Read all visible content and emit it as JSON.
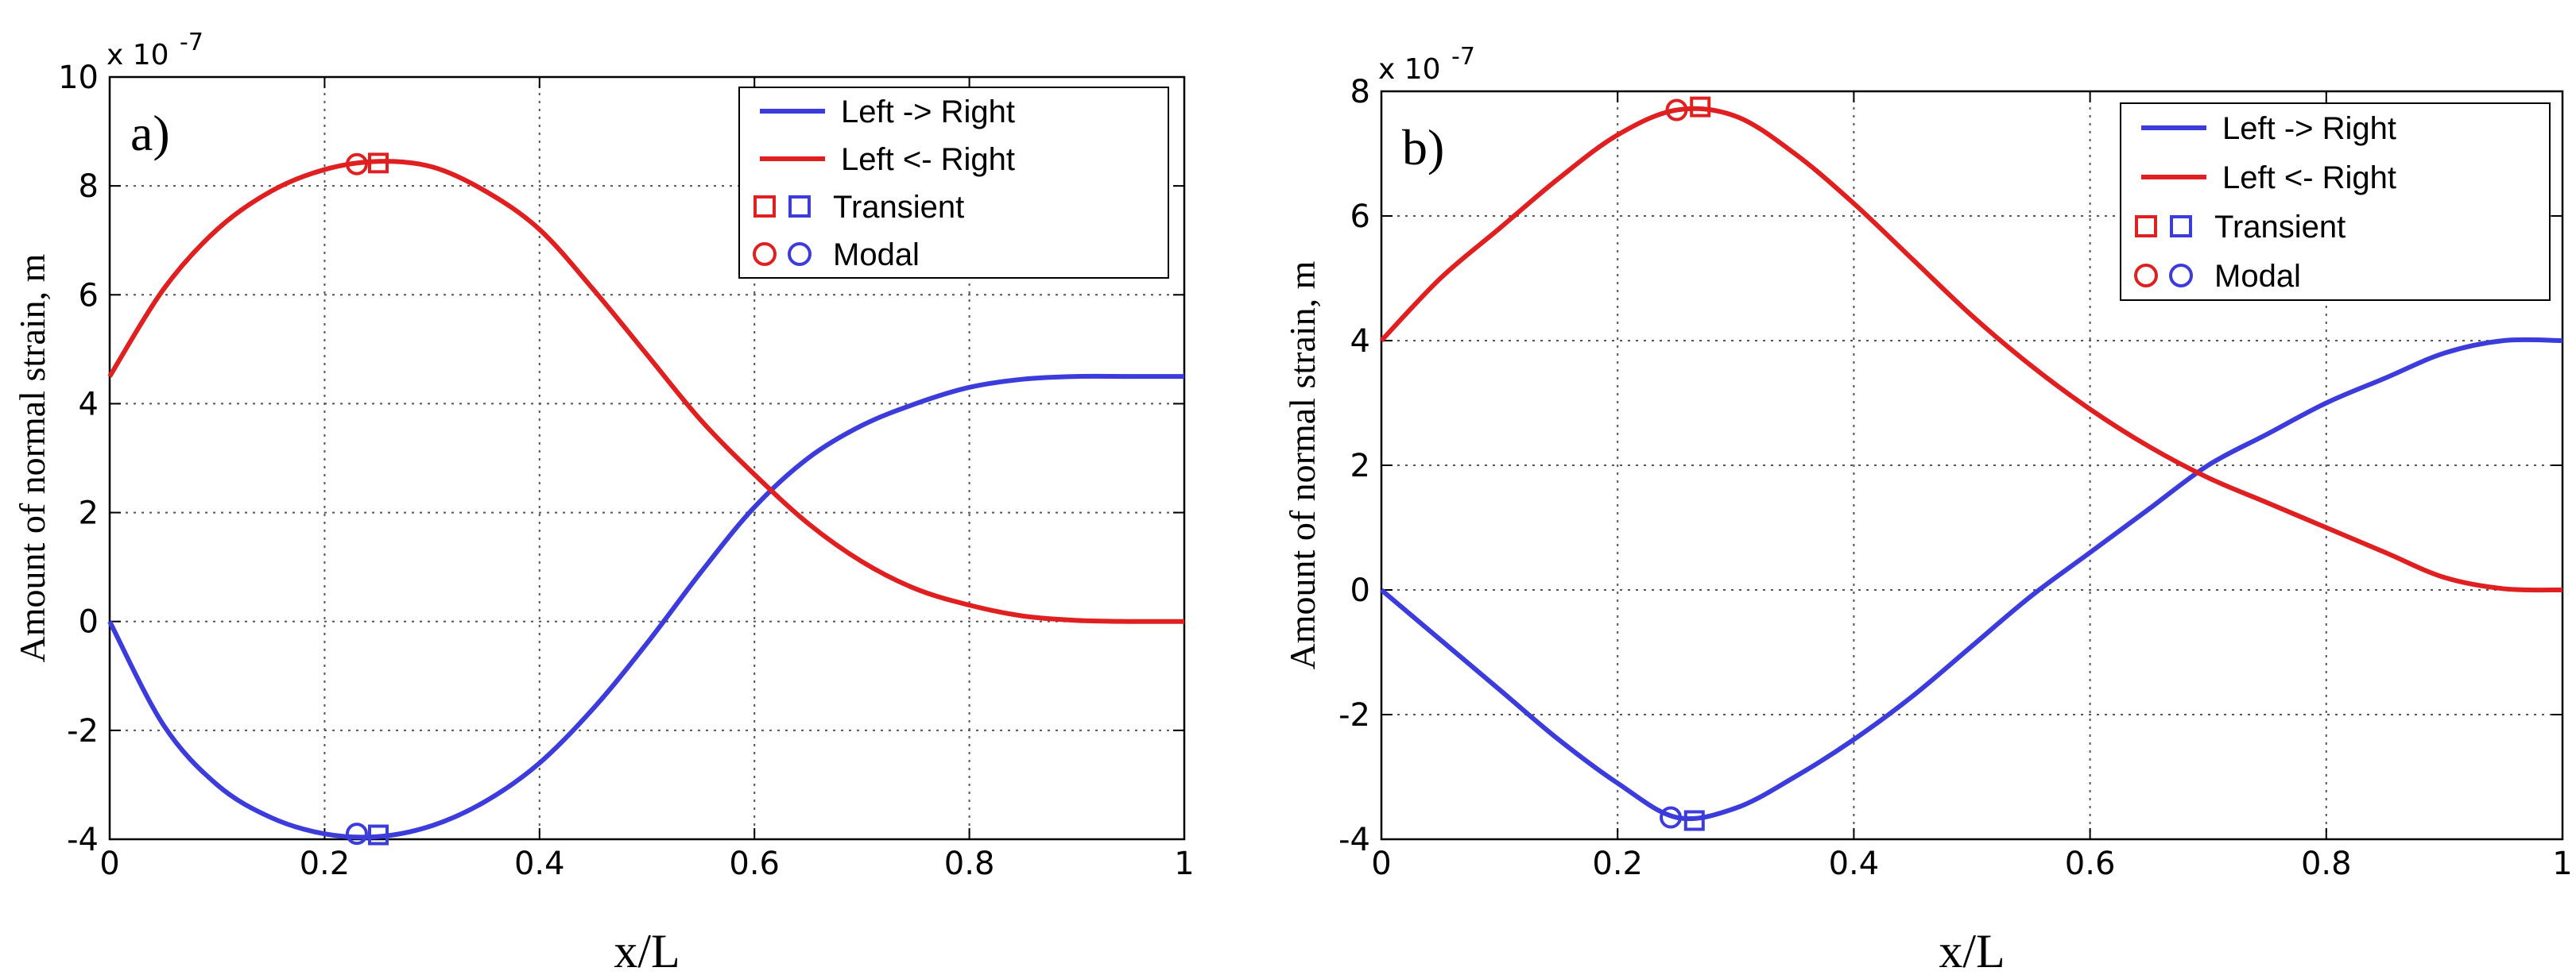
{
  "chart_data": [
    {
      "type": "line",
      "panel_label": "a)",
      "xlabel": "x/L",
      "ylabel": "Amount of normal strain, m",
      "y_multiplier": "x 10",
      "y_exponent": "-7",
      "xlim": [
        0,
        1
      ],
      "ylim": [
        -4,
        10
      ],
      "xticks": [
        0,
        0.2,
        0.4,
        0.6,
        0.8,
        1
      ],
      "xtick_labels": [
        "0",
        "0.2",
        "0.4",
        "0.6",
        "0.8",
        "1"
      ],
      "yticks": [
        -4,
        -2,
        0,
        2,
        4,
        6,
        8,
        10
      ],
      "ytick_labels": [
        "-4",
        "-2",
        "0",
        "2",
        "4",
        "6",
        "8",
        "10"
      ],
      "grid": true,
      "legend_position": "top-right",
      "series": [
        {
          "name": "Left -> Right",
          "color": "#3c3cdc",
          "x": [
            0,
            0.05,
            0.1,
            0.15,
            0.2,
            0.25,
            0.3,
            0.35,
            0.4,
            0.45,
            0.5,
            0.55,
            0.6,
            0.65,
            0.7,
            0.75,
            0.8,
            0.85,
            0.9,
            0.95,
            1.0
          ],
          "y": [
            0,
            -1.9,
            -3.0,
            -3.6,
            -3.9,
            -3.95,
            -3.75,
            -3.3,
            -2.6,
            -1.6,
            -0.4,
            0.9,
            2.1,
            3.0,
            3.6,
            4.0,
            4.3,
            4.45,
            4.5,
            4.5,
            4.5
          ]
        },
        {
          "name": "Left <- Right",
          "color": "#e02020",
          "x": [
            0,
            0.05,
            0.1,
            0.15,
            0.2,
            0.25,
            0.3,
            0.35,
            0.4,
            0.45,
            0.5,
            0.55,
            0.6,
            0.65,
            0.7,
            0.75,
            0.8,
            0.85,
            0.9,
            0.95,
            1.0
          ],
          "y": [
            4.5,
            6.1,
            7.2,
            7.9,
            8.3,
            8.45,
            8.35,
            7.9,
            7.2,
            6.1,
            4.9,
            3.7,
            2.7,
            1.8,
            1.1,
            0.6,
            0.3,
            0.1,
            0.02,
            0,
            0
          ]
        }
      ],
      "markers": [
        {
          "series": "Left <- Right",
          "method": "Modal",
          "shape": "circle",
          "x": 0.23,
          "y": 8.4
        },
        {
          "series": "Left <- Right",
          "method": "Transient",
          "shape": "square",
          "x": 0.25,
          "y": 8.42
        },
        {
          "series": "Left -> Right",
          "method": "Modal",
          "shape": "circle",
          "x": 0.23,
          "y": -3.9
        },
        {
          "series": "Left -> Right",
          "method": "Transient",
          "shape": "square",
          "x": 0.25,
          "y": -3.92
        }
      ],
      "legend": [
        {
          "label": "Left -> Right",
          "kind": "line",
          "colors": [
            "#3c3cdc"
          ]
        },
        {
          "label": "Left <- Right",
          "kind": "line",
          "colors": [
            "#e02020"
          ]
        },
        {
          "label": "Transient",
          "kind": "square",
          "colors": [
            "#e02020",
            "#3c3cdc"
          ]
        },
        {
          "label": "Modal",
          "kind": "circle",
          "colors": [
            "#e02020",
            "#3c3cdc"
          ]
        }
      ]
    },
    {
      "type": "line",
      "panel_label": "b)",
      "xlabel": "x/L",
      "ylabel": "Amount of normal strain, m",
      "y_multiplier": "x 10",
      "y_exponent": "-7",
      "xlim": [
        0,
        1
      ],
      "ylim": [
        -4,
        8
      ],
      "xticks": [
        0,
        0.2,
        0.4,
        0.6,
        0.8,
        1
      ],
      "xtick_labels": [
        "0",
        "0.2",
        "0.4",
        "0.6",
        "0.8",
        "1"
      ],
      "yticks": [
        -4,
        -2,
        0,
        2,
        4,
        6,
        8
      ],
      "ytick_labels": [
        "-4",
        "-2",
        "0",
        "2",
        "4",
        "6",
        "8"
      ],
      "grid": true,
      "legend_position": "top-right",
      "series": [
        {
          "name": "Left -> Right",
          "color": "#3c3cdc",
          "x": [
            0,
            0.05,
            0.1,
            0.15,
            0.2,
            0.25,
            0.3,
            0.35,
            0.4,
            0.45,
            0.5,
            0.55,
            0.6,
            0.65,
            0.7,
            0.75,
            0.8,
            0.85,
            0.9,
            0.95,
            1.0
          ],
          "y": [
            0,
            -0.8,
            -1.6,
            -2.4,
            -3.1,
            -3.65,
            -3.5,
            -3.0,
            -2.4,
            -1.7,
            -0.9,
            -0.1,
            0.6,
            1.3,
            2.0,
            2.5,
            3.0,
            3.4,
            3.8,
            4.0,
            4.0
          ]
        },
        {
          "name": "Left <- Right",
          "color": "#e02020",
          "x": [
            0,
            0.05,
            0.1,
            0.15,
            0.2,
            0.25,
            0.3,
            0.35,
            0.4,
            0.45,
            0.5,
            0.55,
            0.6,
            0.65,
            0.7,
            0.75,
            0.8,
            0.85,
            0.9,
            0.95,
            1.0
          ],
          "y": [
            4.0,
            5.0,
            5.8,
            6.6,
            7.3,
            7.7,
            7.6,
            7.0,
            6.2,
            5.3,
            4.4,
            3.6,
            2.9,
            2.3,
            1.8,
            1.4,
            1.0,
            0.6,
            0.2,
            0.02,
            0
          ]
        }
      ],
      "markers": [
        {
          "series": "Left <- Right",
          "method": "Modal",
          "shape": "circle",
          "x": 0.25,
          "y": 7.7
        },
        {
          "series": "Left <- Right",
          "method": "Transient",
          "shape": "square",
          "x": 0.27,
          "y": 7.75
        },
        {
          "series": "Left -> Right",
          "method": "Modal",
          "shape": "circle",
          "x": 0.245,
          "y": -3.65
        },
        {
          "series": "Left -> Right",
          "method": "Transient",
          "shape": "square",
          "x": 0.265,
          "y": -3.7
        }
      ],
      "legend": [
        {
          "label": "Left -> Right",
          "kind": "line",
          "colors": [
            "#3c3cdc"
          ]
        },
        {
          "label": "Left <- Right",
          "kind": "line",
          "colors": [
            "#e02020"
          ]
        },
        {
          "label": "Transient",
          "kind": "square",
          "colors": [
            "#e02020",
            "#3c3cdc"
          ]
        },
        {
          "label": "Modal",
          "kind": "circle",
          "colors": [
            "#e02020",
            "#3c3cdc"
          ]
        }
      ]
    }
  ]
}
